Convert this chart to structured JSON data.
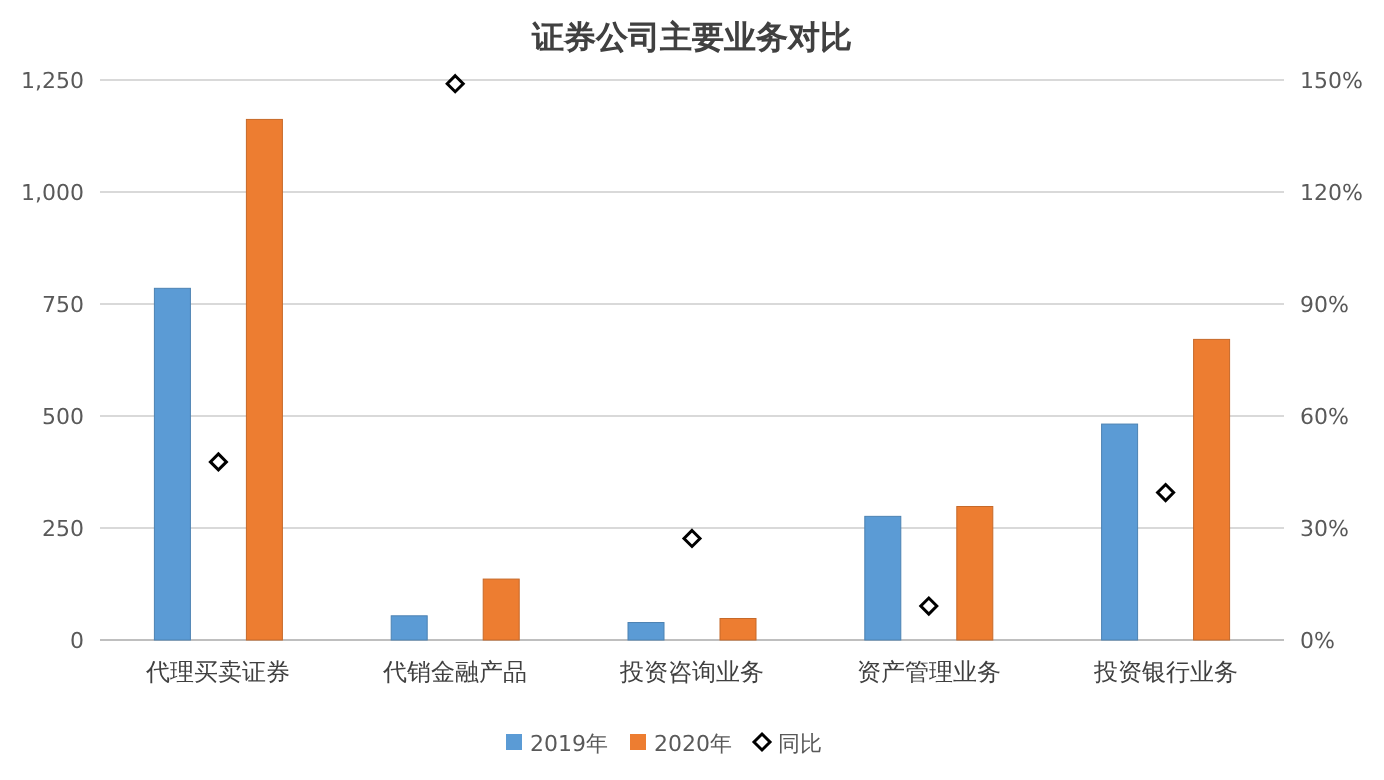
{
  "chart_data": {
    "type": "bar",
    "title": "证券公司主要业务对比",
    "categories": [
      "代理买卖证券",
      "代销金融产品",
      "投资咨询业务",
      "资产管理业务",
      "投资银行业务"
    ],
    "series": [
      {
        "name": "2019年",
        "color": "#5b9bd5",
        "values": [
          785,
          54,
          39,
          276,
          482
        ]
      },
      {
        "name": "2020年",
        "color": "#ed7d31",
        "values": [
          1162,
          136,
          48,
          298,
          671
        ]
      },
      {
        "name": "同比",
        "type": "scatter",
        "axis": "y2",
        "marker": "diamond",
        "color": "#000000",
        "values": [
          47.7,
          149,
          27.2,
          9.1,
          39.5
        ]
      }
    ],
    "ylim": [
      0,
      1250
    ],
    "yticks": [
      0,
      250,
      500,
      750,
      {
        "value": 1000,
        "label": "1,000"
      },
      {
        "value": 1250,
        "label": "1,250"
      }
    ],
    "y2lim": [
      0,
      150
    ],
    "y2ticks": [
      {
        "value": 0,
        "label": "0%"
      },
      {
        "value": 30,
        "label": "30%"
      },
      {
        "value": 60,
        "label": "60%"
      },
      {
        "value": 90,
        "label": "90%"
      },
      {
        "value": 120,
        "label": "120%"
      },
      {
        "value": 150,
        "label": "150%"
      }
    ],
    "grid": "y",
    "legend": "bottom"
  }
}
